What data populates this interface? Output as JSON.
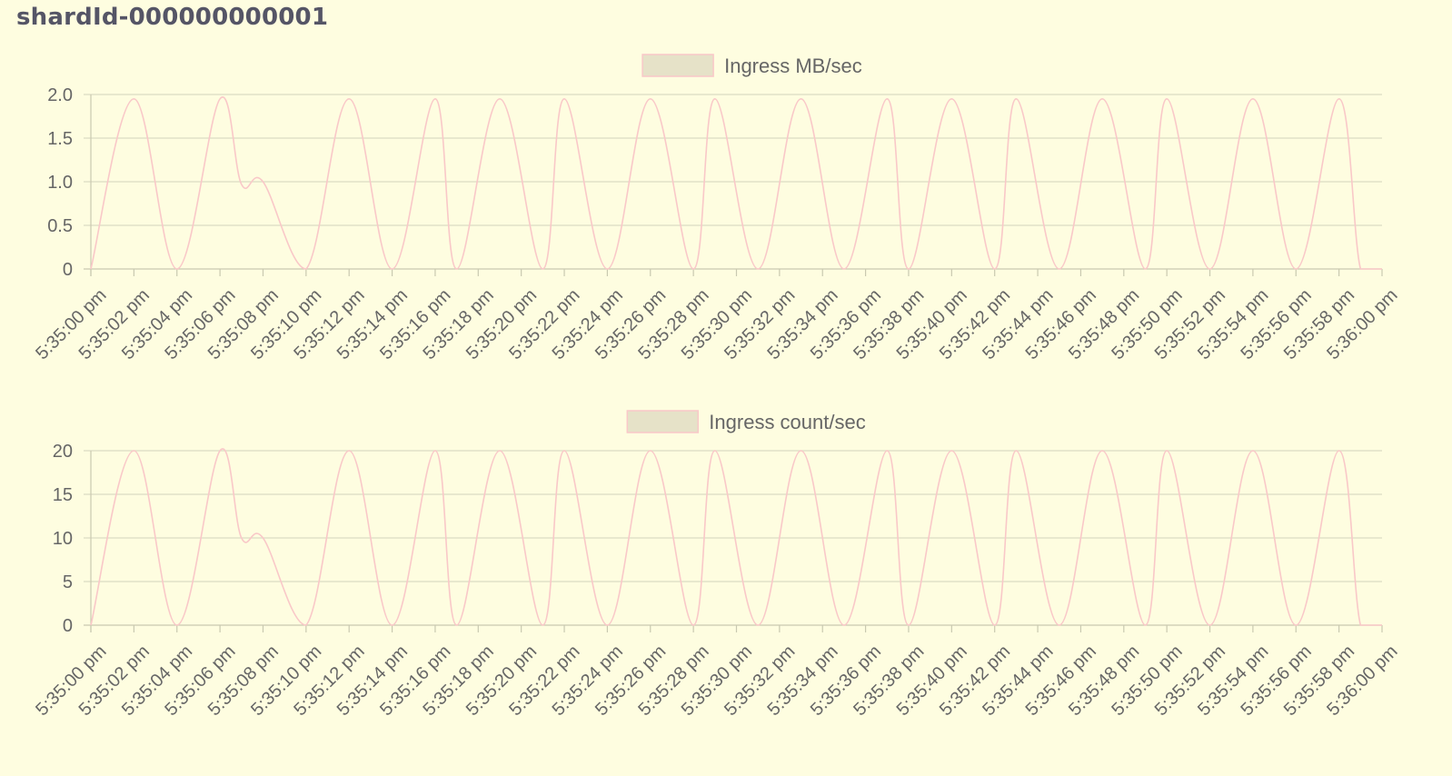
{
  "page": {
    "title": "shardId-000000000001"
  },
  "colors": {
    "background": "#fefde0",
    "line": "#f9c8c8",
    "legend_fill": "#e6e2c8",
    "grid": "#dcdcc4",
    "axis": "#c9c9b0",
    "text": "#666666",
    "title": "#555566"
  },
  "chart_data": [
    {
      "type": "line",
      "title": "",
      "legend": "Ingress MB/sec",
      "legend_position": "top-center",
      "grid": true,
      "xlabel": "",
      "ylabel": "",
      "ylim": [
        0,
        2.0
      ],
      "yticks": [
        "0",
        "0.5",
        "1.0",
        "1.5",
        "2.0"
      ],
      "xticks": [
        "5:35:00 pm",
        "5:35:02 pm",
        "5:35:04 pm",
        "5:35:06 pm",
        "5:35:08 pm",
        "5:35:10 pm",
        "5:35:12 pm",
        "5:35:14 pm",
        "5:35:16 pm",
        "5:35:18 pm",
        "5:35:20 pm",
        "5:35:22 pm",
        "5:35:24 pm",
        "5:35:26 pm",
        "5:35:28 pm",
        "5:35:30 pm",
        "5:35:32 pm",
        "5:35:34 pm",
        "5:35:36 pm",
        "5:35:38 pm",
        "5:35:40 pm",
        "5:35:42 pm",
        "5:35:44 pm",
        "5:35:46 pm",
        "5:35:48 pm",
        "5:35:50 pm",
        "5:35:52 pm",
        "5:35:54 pm",
        "5:35:56 pm",
        "5:35:58 pm",
        "5:36:00 pm"
      ],
      "series": [
        {
          "name": "Ingress MB/sec",
          "x": [
            "5:35:00 pm",
            "5:35:02 pm",
            "5:35:04 pm",
            "5:35:06 pm",
            "5:35:07 pm",
            "5:35:08 pm",
            "5:35:10 pm",
            "5:35:12 pm",
            "5:35:14 pm",
            "5:35:16 pm",
            "5:35:17 pm",
            "5:35:19 pm",
            "5:35:21 pm",
            "5:35:22 pm",
            "5:35:24 pm",
            "5:35:26 pm",
            "5:35:28 pm",
            "5:35:29 pm",
            "5:35:31 pm",
            "5:35:33 pm",
            "5:35:35 pm",
            "5:35:37 pm",
            "5:35:38 pm",
            "5:35:40 pm",
            "5:35:42 pm",
            "5:35:43 pm",
            "5:35:45 pm",
            "5:35:47 pm",
            "5:35:49 pm",
            "5:35:50 pm",
            "5:35:52 pm",
            "5:35:54 pm",
            "5:35:56 pm",
            "5:35:58 pm",
            "5:35:59 pm",
            "5:36:00 pm"
          ],
          "values": [
            0,
            1.95,
            0,
            1.95,
            0.97,
            1.0,
            0,
            1.95,
            0,
            1.95,
            0,
            1.95,
            0,
            1.95,
            0,
            1.95,
            0,
            1.95,
            0,
            1.95,
            0,
            1.95,
            0,
            1.95,
            0,
            1.95,
            0,
            1.95,
            0,
            1.95,
            0,
            1.95,
            0,
            1.95,
            0,
            0
          ]
        }
      ]
    },
    {
      "type": "line",
      "title": "",
      "legend": "Ingress count/sec",
      "legend_position": "top-center",
      "grid": true,
      "xlabel": "",
      "ylabel": "",
      "ylim": [
        0,
        20
      ],
      "yticks": [
        "0",
        "5",
        "10",
        "15",
        "20"
      ],
      "xticks": [
        "5:35:00 pm",
        "5:35:02 pm",
        "5:35:04 pm",
        "5:35:06 pm",
        "5:35:08 pm",
        "5:35:10 pm",
        "5:35:12 pm",
        "5:35:14 pm",
        "5:35:16 pm",
        "5:35:18 pm",
        "5:35:20 pm",
        "5:35:22 pm",
        "5:35:24 pm",
        "5:35:26 pm",
        "5:35:28 pm",
        "5:35:30 pm",
        "5:35:32 pm",
        "5:35:34 pm",
        "5:35:36 pm",
        "5:35:38 pm",
        "5:35:40 pm",
        "5:35:42 pm",
        "5:35:44 pm",
        "5:35:46 pm",
        "5:35:48 pm",
        "5:35:50 pm",
        "5:35:52 pm",
        "5:35:54 pm",
        "5:35:56 pm",
        "5:35:58 pm",
        "5:36:00 pm"
      ],
      "series": [
        {
          "name": "Ingress count/sec",
          "x": [
            "5:35:00 pm",
            "5:35:02 pm",
            "5:35:04 pm",
            "5:35:06 pm",
            "5:35:07 pm",
            "5:35:08 pm",
            "5:35:10 pm",
            "5:35:12 pm",
            "5:35:14 pm",
            "5:35:16 pm",
            "5:35:17 pm",
            "5:35:19 pm",
            "5:35:21 pm",
            "5:35:22 pm",
            "5:35:24 pm",
            "5:35:26 pm",
            "5:35:28 pm",
            "5:35:29 pm",
            "5:35:31 pm",
            "5:35:33 pm",
            "5:35:35 pm",
            "5:35:37 pm",
            "5:35:38 pm",
            "5:35:40 pm",
            "5:35:42 pm",
            "5:35:43 pm",
            "5:35:45 pm",
            "5:35:47 pm",
            "5:35:49 pm",
            "5:35:50 pm",
            "5:35:52 pm",
            "5:35:54 pm",
            "5:35:56 pm",
            "5:35:58 pm",
            "5:35:59 pm",
            "5:36:00 pm"
          ],
          "values": [
            0,
            20,
            0,
            20,
            10,
            10,
            0,
            20,
            0,
            20,
            0,
            20,
            0,
            20,
            0,
            20,
            0,
            20,
            0,
            20,
            0,
            20,
            0,
            20,
            0,
            20,
            0,
            20,
            0,
            20,
            0,
            20,
            0,
            20,
            0,
            0
          ]
        }
      ]
    }
  ]
}
